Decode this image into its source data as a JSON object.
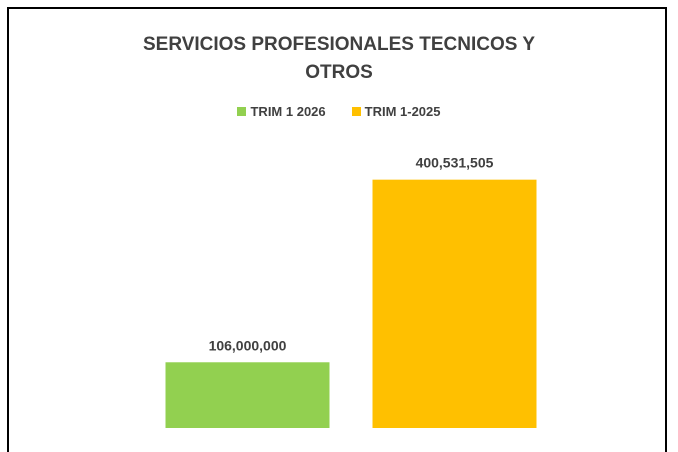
{
  "chart_data": {
    "type": "bar",
    "title": "SERVICIOS PROFESIONALES TECNICOS Y OTROS",
    "categories": [
      null
    ],
    "series": [
      {
        "name": "TRIM 1 2026",
        "color": "#92d050",
        "values": [
          106000000
        ],
        "value_labels": [
          "106,000,000"
        ]
      },
      {
        "name": "TRIM 1-2025",
        "color": "#ffc000",
        "values": [
          400531505
        ],
        "value_labels": [
          "400,531,505"
        ]
      }
    ],
    "ylim": [
      0,
      450000000
    ],
    "legend": "top"
  }
}
